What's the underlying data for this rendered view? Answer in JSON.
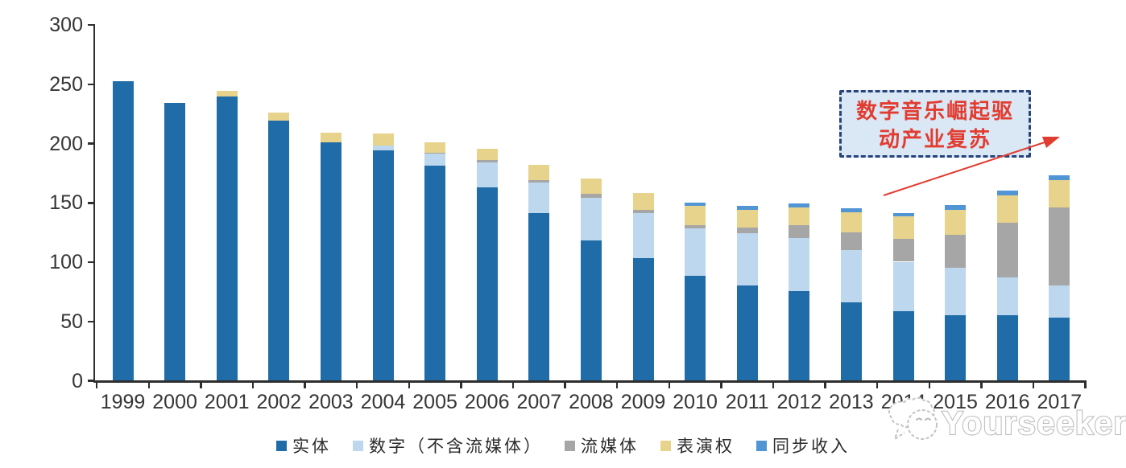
{
  "chart_data": {
    "type": "bar",
    "stacked": true,
    "title": "",
    "xlabel": "",
    "ylabel": "",
    "ylim": [
      0,
      300
    ],
    "yticks": [
      0,
      50,
      100,
      150,
      200,
      250,
      300
    ],
    "grid": false,
    "legend_position": "bottom",
    "categories": [
      "1999",
      "2000",
      "2001",
      "2002",
      "2003",
      "2004",
      "2005",
      "2006",
      "2007",
      "2008",
      "2009",
      "2010",
      "2011",
      "2012",
      "2013",
      "2014",
      "2015",
      "2016",
      "2017"
    ],
    "series": [
      {
        "name": "实体",
        "color": "#1F6CA8",
        "values": [
          252,
          234,
          239,
          219,
          201,
          194,
          181,
          163,
          141,
          118,
          103,
          88,
          80,
          75,
          66,
          58,
          55,
          55,
          53
        ]
      },
      {
        "name": "数字（不含流媒体）",
        "color": "#BDD7EE",
        "values": [
          0,
          0,
          0,
          0,
          0,
          4,
          10,
          21,
          26,
          36,
          38,
          40,
          44,
          45,
          44,
          42,
          40,
          32,
          27
        ]
      },
      {
        "name": "流媒体",
        "color": "#A6A6A6",
        "values": [
          0,
          0,
          0,
          0,
          0,
          0,
          1,
          2,
          2,
          3,
          3,
          3,
          5,
          11,
          15,
          19,
          28,
          46,
          66
        ]
      },
      {
        "name": "表演权",
        "color": "#E7D38C",
        "values": [
          0,
          0,
          5,
          7,
          8,
          10,
          9,
          9,
          13,
          13,
          14,
          16,
          15,
          15,
          17,
          19,
          21,
          23,
          23
        ]
      },
      {
        "name": "同步收入",
        "color": "#5295D5",
        "values": [
          0,
          0,
          0,
          0,
          0,
          0,
          0,
          0,
          0,
          0,
          0,
          3,
          3,
          3,
          3,
          3,
          4,
          4,
          4
        ]
      }
    ],
    "annotation": {
      "text": "数字音乐崛起驱动产业复苏",
      "line1": "数字音乐崛起驱",
      "line2": "动产业复苏",
      "box_fill": "#DAE7F5",
      "box_border": "#27427C",
      "text_color": "#E23C30",
      "arrow_color": "#E23C30"
    },
    "watermark": "Yourseeker"
  }
}
